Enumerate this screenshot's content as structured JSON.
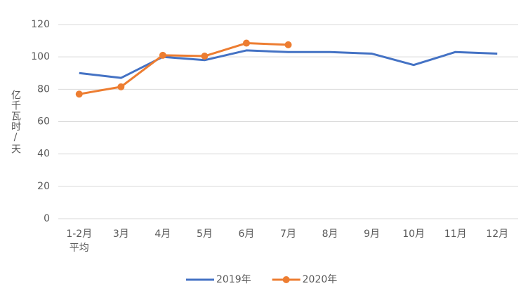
{
  "chart_data": {
    "type": "line",
    "y_label": "亿千瓦时/天",
    "categories": [
      "1-2月\n平均",
      "3月",
      "4月",
      "5月",
      "6月",
      "7月",
      "8月",
      "9月",
      "10月",
      "11月",
      "12月"
    ],
    "series": [
      {
        "name": "2019年",
        "color": "#4472c4",
        "marker": false,
        "values": [
          90,
          87,
          100,
          98,
          104,
          103,
          103,
          102,
          95,
          103,
          102
        ]
      },
      {
        "name": "2020年",
        "color": "#ed7d31",
        "marker": true,
        "values": [
          77,
          81.5,
          101,
          100.5,
          108.5,
          107.5,
          null,
          null,
          null,
          null,
          null
        ]
      }
    ],
    "ylim": [
      0,
      120
    ],
    "yticks": [
      0,
      20,
      40,
      60,
      80,
      100,
      120
    ],
    "grid": true,
    "legend": "bottom"
  }
}
